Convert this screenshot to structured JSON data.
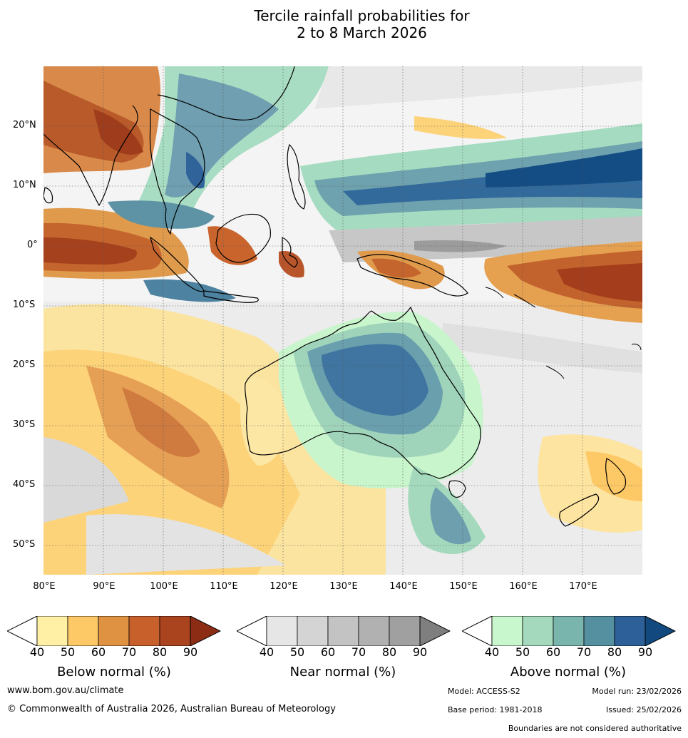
{
  "title_line1": "Tercile rainfall probabilities for",
  "title_line2": "2 to 8 March 2026",
  "lat_labels": [
    "20°N",
    "10°N",
    "0°",
    "10°S",
    "20°S",
    "30°S",
    "40°S",
    "50°S"
  ],
  "lon_labels": [
    "80°E",
    "90°E",
    "100°E",
    "110°E",
    "120°E",
    "130°E",
    "140°E",
    "150°E",
    "160°E",
    "170°E"
  ],
  "colorbars": [
    {
      "label": "Below normal (%)",
      "ticks": [
        "40",
        "50",
        "60",
        "70",
        "80",
        "90"
      ],
      "colors": [
        "#fff0a6",
        "#fdc966",
        "#df9242",
        "#c8602c",
        "#a9441f",
        "#8c2c14"
      ]
    },
    {
      "label": "Near normal (%)",
      "ticks": [
        "40",
        "50",
        "60",
        "70",
        "80",
        "90"
      ],
      "colors": [
        "#e6e6e6",
        "#d4d4d4",
        "#c3c3c3",
        "#b1b1b1",
        "#a0a0a0",
        "#7f7f7f"
      ]
    },
    {
      "label": "Above normal (%)",
      "ticks": [
        "40",
        "50",
        "60",
        "70",
        "80",
        "90"
      ],
      "colors": [
        "#c9f7cd",
        "#a4d9bd",
        "#7ab5ad",
        "#5590a1",
        "#2d6098",
        "#124a80"
      ]
    }
  ],
  "footer": {
    "website": "www.bom.gov.au/climate",
    "copyright": "© Commonwealth of Australia 2026, Australian Bureau of Meteorology",
    "model": "Model: ACCESS-S2",
    "model_run": "Model run: 23/02/2026",
    "base_period": "Base period: 1981-2018",
    "issued": "Issued: 25/02/2026",
    "disclaimer": "Boundaries are not considered authoritative"
  }
}
